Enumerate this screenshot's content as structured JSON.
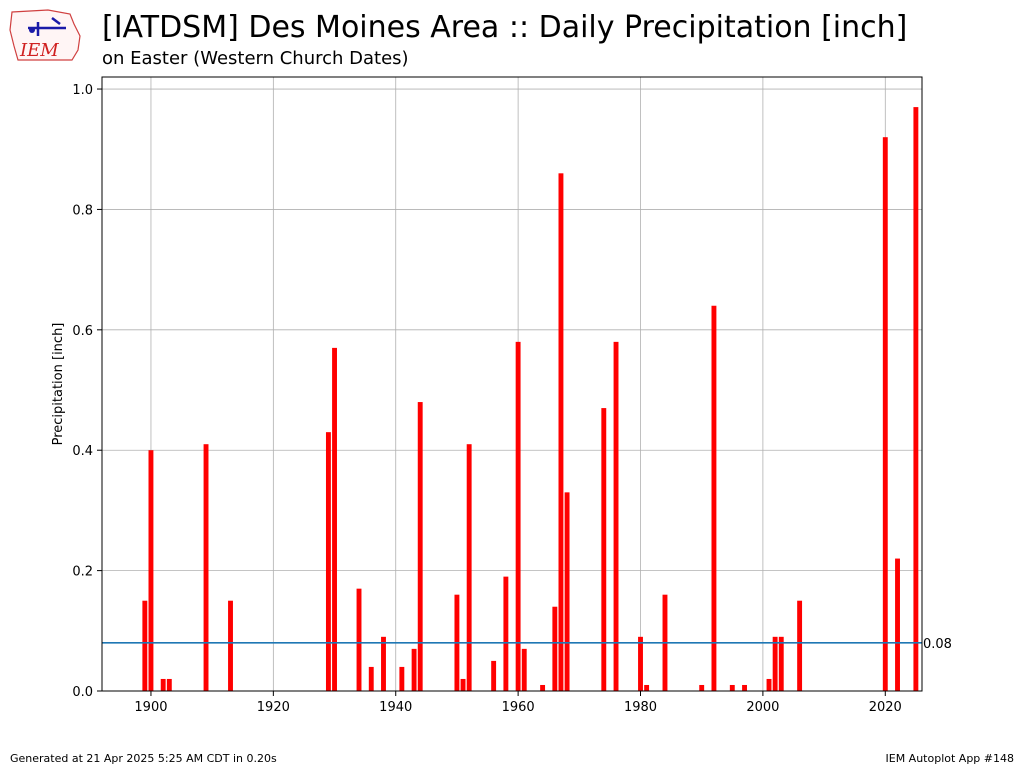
{
  "header": {
    "logo_text": "IEM",
    "title": "[IATDSM] Des Moines Area :: Daily Precipitation [inch]",
    "subtitle": "on Easter (Western Church Dates)"
  },
  "footer": {
    "generated": "Generated at 21 Apr 2025 5:25 AM CDT in 0.20s",
    "app": "IEM Autoplot App #148"
  },
  "colors": {
    "bar": "#ff0000",
    "average_line": "#1f77b4",
    "grid": "#b0b0b0"
  },
  "chart_data": {
    "type": "bar",
    "xlabel": "",
    "ylabel": "Precipitation [inch]",
    "xlim": [
      1892,
      2026
    ],
    "ylim": [
      0,
      1.02
    ],
    "xticks": [
      1900,
      1920,
      1940,
      1960,
      1980,
      2000,
      2020
    ],
    "yticks": [
      "0.0",
      "0.2",
      "0.4",
      "0.6",
      "0.8",
      "1.0"
    ],
    "grid": true,
    "average_line": {
      "value": 0.08,
      "label": "0.08"
    },
    "x": [
      1899,
      1900,
      1902,
      1903,
      1909,
      1913,
      1929,
      1930,
      1934,
      1936,
      1938,
      1941,
      1943,
      1944,
      1950,
      1951,
      1952,
      1956,
      1958,
      1960,
      1961,
      1964,
      1966,
      1967,
      1968,
      1974,
      1976,
      1980,
      1981,
      1984,
      1990,
      1992,
      1995,
      1997,
      2001,
      2002,
      2003,
      2006,
      2020,
      2022,
      2025
    ],
    "values": [
      0.15,
      0.4,
      0.02,
      0.02,
      0.41,
      0.15,
      0.43,
      0.57,
      0.17,
      0.04,
      0.09,
      0.04,
      0.07,
      0.48,
      0.16,
      0.02,
      0.41,
      0.05,
      0.19,
      0.58,
      0.07,
      0.01,
      0.14,
      0.86,
      0.33,
      0.47,
      0.58,
      0.09,
      0.01,
      0.16,
      0.01,
      0.64,
      0.01,
      0.01,
      0.02,
      0.09,
      0.09,
      0.15,
      0.92,
      0.22,
      0.97
    ]
  }
}
